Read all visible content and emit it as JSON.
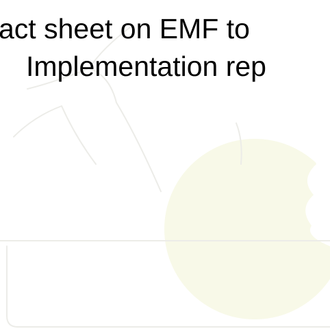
{
  "title": {
    "lines": [
      "act sheet on EMF to",
      "Implementation rep"
    ]
  }
}
